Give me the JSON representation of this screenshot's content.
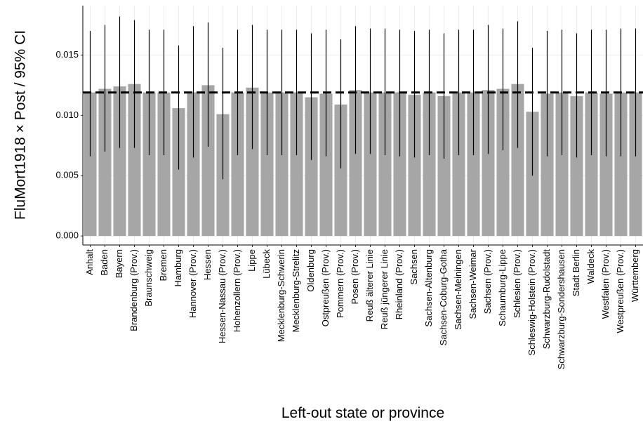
{
  "chart_data": {
    "type": "bar",
    "y_label": "FluMort1918 × Post / 95% CI",
    "x_label": "Left-out state or province",
    "categories": [
      "Anhalt",
      "Baden",
      "Bayern",
      "Brandenburg (Prov.)",
      "Braunschweig",
      "Bremen",
      "Hamburg",
      "Hannover (Prov.)",
      "Hessen",
      "Hessen-Nassau (Prov.)",
      "Hohenzollern (Prov.)",
      "Lippe",
      "Lübeck",
      "Mecklenburg-Schwerin",
      "Mecklenburg-Strelitz",
      "Oldenburg",
      "Ostpreußen (Prov.)",
      "Pommern (Prov.)",
      "Posen (Prov.)",
      "Reuß älterer Linie",
      "Reuß jüngerer Linie",
      "Rheinland (Prov.)",
      "Sachsen",
      "Sachsen-Altenburg",
      "Sachsen-Coburg-Gotha",
      "Sachsen-Meiningen",
      "Sachsen-Weimar",
      "Sachsen (Prov.)",
      "Schaumburg-Lippe",
      "Schlesien (Prov.)",
      "Schleswig-Holstein (Prov.)",
      "Schwarzburg-Rudolstadt",
      "Schwarzburg-Sondershausen",
      "Stadt Berlin",
      "Waldeck",
      "Westfalen (Prov.)",
      "Westpreußen (Prov.)",
      "Württemberg"
    ],
    "values": [
      0.0119,
      0.0122,
      0.0124,
      0.0126,
      0.0119,
      0.0119,
      0.0106,
      0.0119,
      0.0125,
      0.0101,
      0.0119,
      0.0123,
      0.0119,
      0.0119,
      0.0119,
      0.0115,
      0.0118,
      0.0109,
      0.0121,
      0.0119,
      0.0119,
      0.0119,
      0.0117,
      0.0119,
      0.0116,
      0.0119,
      0.0119,
      0.0121,
      0.0122,
      0.0126,
      0.0103,
      0.0118,
      0.0119,
      0.0116,
      0.0119,
      0.0118,
      0.0119,
      0.0119
    ],
    "ci_low": [
      0.0066,
      0.007,
      0.0073,
      0.0073,
      0.0067,
      0.0067,
      0.0055,
      0.0065,
      0.0074,
      0.0047,
      0.0067,
      0.0072,
      0.0067,
      0.0067,
      0.0067,
      0.0063,
      0.0066,
      0.0056,
      0.0068,
      0.0068,
      0.0067,
      0.0066,
      0.0065,
      0.0067,
      0.0064,
      0.0067,
      0.0067,
      0.0068,
      0.0071,
      0.0073,
      0.005,
      0.0066,
      0.0067,
      0.0065,
      0.0067,
      0.0066,
      0.0066,
      0.0066
    ],
    "ci_high": [
      0.017,
      0.0175,
      0.0182,
      0.0179,
      0.0171,
      0.0171,
      0.0158,
      0.0174,
      0.0177,
      0.0156,
      0.0171,
      0.0175,
      0.0171,
      0.0171,
      0.0171,
      0.0168,
      0.0171,
      0.0163,
      0.0174,
      0.0172,
      0.0172,
      0.0171,
      0.017,
      0.0171,
      0.0168,
      0.0171,
      0.0171,
      0.0175,
      0.0172,
      0.0178,
      0.0156,
      0.017,
      0.0171,
      0.0168,
      0.0171,
      0.0171,
      0.0172,
      0.0172
    ],
    "color": "#a6a6a6",
    "hline": 0.0119,
    "ylim": [
      -0.00075,
      0.0191
    ],
    "yticks": [
      {
        "value": 0,
        "label": "0.000"
      },
      {
        "value": 0.005,
        "label": "0.005"
      },
      {
        "value": 0.01,
        "label": "0.010"
      },
      {
        "value": 0.015,
        "label": "0.015"
      }
    ],
    "grid": true
  }
}
